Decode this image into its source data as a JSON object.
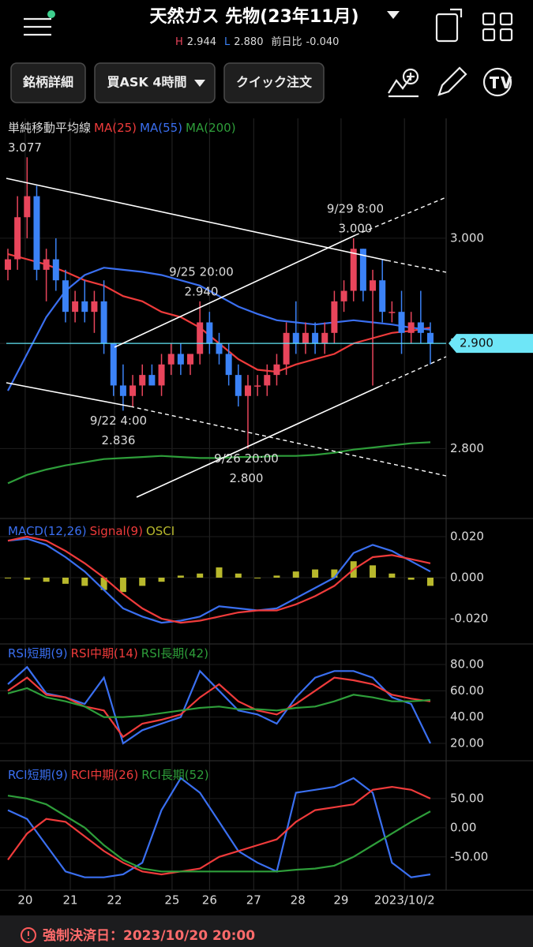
{
  "header": {
    "title": "天然ガス 先物(23年11月)",
    "high_label": "H",
    "high": "2.944",
    "low_label": "L",
    "low": "2.880",
    "change_label": "前日比",
    "change": "-0.040"
  },
  "toolbar": {
    "buttons": [
      "銘柄詳細",
      "買ASK 4時間",
      "クイック注文"
    ]
  },
  "price_chart": {
    "legend_title": "単純移動平均線",
    "ylim": [
      2.735,
      3.114
    ],
    "yticks": [
      {
        "value": 3.0,
        "label": "3.000"
      },
      {
        "value": 2.9,
        "label": "2.900"
      },
      {
        "value": 2.8,
        "label": "2.800"
      }
    ],
    "current_price": {
      "value": 2.9,
      "label": "2.900"
    },
    "high_label": 3.077,
    "annotations": [
      {
        "time": "9/29 8:00",
        "price": {
          "value": 3.0,
          "label": "3.000"
        }
      },
      {
        "time": "9/25 20:00",
        "price": {
          "value": 2.94,
          "label": "2.940"
        }
      },
      {
        "time": "9/22 4:00",
        "price": 2.836
      },
      {
        "time": "9/26 20:00",
        "price": {
          "value": 2.8,
          "label": "2.800"
        }
      }
    ],
    "up_color": "#e8455b",
    "down_color": "#3b82f6",
    "candles": [
      [
        2.97,
        2.99,
        2.96,
        2.98
      ],
      [
        2.98,
        3.04,
        2.97,
        3.02
      ],
      [
        3.02,
        3.077,
        3.0,
        3.04
      ],
      [
        3.04,
        3.05,
        2.96,
        2.97
      ],
      [
        2.97,
        2.99,
        2.94,
        2.98
      ],
      [
        2.98,
        3.0,
        2.95,
        2.96
      ],
      [
        2.96,
        2.97,
        2.92,
        2.93
      ],
      [
        2.93,
        2.95,
        2.92,
        2.94
      ],
      [
        2.94,
        2.96,
        2.92,
        2.93
      ],
      [
        2.93,
        2.95,
        2.91,
        2.94
      ],
      [
        2.94,
        2.96,
        2.89,
        2.9
      ],
      [
        2.9,
        2.9,
        2.85,
        2.86
      ],
      [
        2.86,
        2.88,
        2.836,
        2.85
      ],
      [
        2.85,
        2.87,
        2.84,
        2.86
      ],
      [
        2.86,
        2.88,
        2.85,
        2.87
      ],
      [
        2.87,
        2.88,
        2.86,
        2.86
      ],
      [
        2.86,
        2.89,
        2.85,
        2.88
      ],
      [
        2.88,
        2.9,
        2.87,
        2.89
      ],
      [
        2.89,
        2.9,
        2.87,
        2.88
      ],
      [
        2.88,
        2.89,
        2.87,
        2.89
      ],
      [
        2.89,
        2.94,
        2.88,
        2.92
      ],
      [
        2.92,
        2.93,
        2.89,
        2.9
      ],
      [
        2.9,
        2.91,
        2.88,
        2.89
      ],
      [
        2.89,
        2.9,
        2.86,
        2.87
      ],
      [
        2.87,
        2.88,
        2.84,
        2.85
      ],
      [
        2.85,
        2.87,
        2.8,
        2.86
      ],
      [
        2.86,
        2.87,
        2.85,
        2.86
      ],
      [
        2.86,
        2.88,
        2.85,
        2.87
      ],
      [
        2.87,
        2.89,
        2.86,
        2.88
      ],
      [
        2.88,
        2.92,
        2.87,
        2.91
      ],
      [
        2.91,
        2.94,
        2.89,
        2.9
      ],
      [
        2.9,
        2.92,
        2.89,
        2.91
      ],
      [
        2.91,
        2.92,
        2.89,
        2.9
      ],
      [
        2.9,
        2.92,
        2.89,
        2.91
      ],
      [
        2.91,
        2.95,
        2.9,
        2.94
      ],
      [
        2.94,
        2.96,
        2.93,
        2.95
      ],
      [
        2.95,
        3.0,
        2.94,
        2.99
      ],
      [
        2.99,
        2.99,
        2.94,
        2.95
      ],
      [
        2.95,
        2.97,
        2.86,
        2.96
      ],
      [
        2.96,
        2.98,
        2.92,
        2.93
      ],
      [
        2.93,
        2.94,
        2.92,
        2.93
      ],
      [
        2.93,
        2.95,
        2.89,
        2.91
      ],
      [
        2.91,
        2.93,
        2.9,
        2.92
      ],
      [
        2.92,
        2.95,
        2.9,
        2.91
      ],
      [
        2.91,
        2.92,
        2.88,
        2.9
      ]
    ],
    "series": [
      {
        "name": "MA(25)",
        "color": "#ef3b3b",
        "values": [
          2.985,
          2.98,
          2.975,
          2.968,
          2.96,
          2.955,
          2.945,
          2.94,
          2.93,
          2.925,
          2.915,
          2.9,
          2.885,
          2.875,
          2.873,
          2.88,
          2.885,
          2.89,
          2.9,
          2.905,
          2.91,
          2.912,
          2.915
        ]
      },
      {
        "name": "MA(55)",
        "color": "#3a6ff0",
        "values": [
          2.855,
          2.89,
          2.925,
          2.95,
          2.965,
          2.972,
          2.97,
          2.968,
          2.965,
          2.96,
          2.955,
          2.945,
          2.935,
          2.928,
          2.922,
          2.92,
          2.918,
          2.92,
          2.922,
          2.92,
          2.918,
          2.915,
          2.913
        ]
      },
      {
        "name": "MA(200)",
        "color": "#2e9e3a",
        "values": [
          2.767,
          2.775,
          2.78,
          2.784,
          2.787,
          2.79,
          2.791,
          2.792,
          2.793,
          2.792,
          2.791,
          2.791,
          2.792,
          2.792,
          2.793,
          2.793,
          2.794,
          2.796,
          2.799,
          2.801,
          2.803,
          2.805,
          2.806
        ]
      }
    ]
  },
  "macd": {
    "ylim": [
      -0.0308,
      0.0277
    ],
    "yticks": [
      {
        "value": 0.02,
        "label": "0.020"
      },
      {
        "value": 0,
        "label": "0.000"
      },
      {
        "value": -0.02,
        "label": "-0.020"
      }
    ],
    "series": [
      {
        "name": "MACD(12,26)",
        "color": "#3a6ff0",
        "values": [
          0.018,
          0.019,
          0.016,
          0.01,
          0.003,
          -0.006,
          -0.015,
          -0.019,
          -0.022,
          -0.021,
          -0.019,
          -0.014,
          -0.015,
          -0.016,
          -0.015,
          -0.01,
          -0.005,
          0.0,
          0.012,
          0.016,
          0.013,
          0.008,
          0.003
        ]
      },
      {
        "name": "Signal(9)",
        "color": "#ef3b3b",
        "values": [
          0.018,
          0.02,
          0.018,
          0.013,
          0.007,
          0.0,
          -0.008,
          -0.015,
          -0.02,
          -0.022,
          -0.021,
          -0.019,
          -0.017,
          -0.016,
          -0.016,
          -0.013,
          -0.009,
          -0.004,
          0.004,
          0.01,
          0.011,
          0.009,
          0.007
        ]
      }
    ],
    "osci": {
      "name": "OSCI",
      "color": "#b8b82c",
      "values": [
        0.0,
        -0.001,
        -0.002,
        -0.003,
        -0.004,
        -0.006,
        -0.007,
        -0.004,
        -0.002,
        0.001,
        0.002,
        0.005,
        0.002,
        0.0,
        0.001,
        0.003,
        0.004,
        0.004,
        0.008,
        0.006,
        0.002,
        -0.001,
        -0.004
      ]
    }
  },
  "rsi": {
    "ylim": [
      8,
      88.4
    ],
    "yticks": [
      {
        "value": 80,
        "label": "80.00"
      },
      {
        "value": 60,
        "label": "60.00"
      },
      {
        "value": 40,
        "label": "40.00"
      },
      {
        "value": 20,
        "label": "20.00"
      }
    ],
    "series": [
      {
        "name": "RSI短期(9)",
        "color": "#3a6ff0",
        "values": [
          65,
          78,
          58,
          55,
          50,
          70,
          20,
          30,
          35,
          40,
          75,
          60,
          45,
          42,
          35,
          55,
          70,
          75,
          75,
          70,
          55,
          50,
          20
        ]
      },
      {
        "name": "RSI中期(14)",
        "color": "#ef3b3b",
        "values": [
          60,
          70,
          57,
          55,
          48,
          45,
          25,
          35,
          38,
          42,
          55,
          65,
          52,
          45,
          42,
          50,
          60,
          70,
          68,
          65,
          57,
          54,
          52
        ]
      },
      {
        "name": "RSI長期(42)",
        "color": "#2e9e3a",
        "values": [
          58,
          62,
          55,
          52,
          48,
          40,
          40,
          41,
          43,
          45,
          47,
          48,
          46,
          46,
          45,
          47,
          48,
          52,
          57,
          55,
          52,
          52,
          53
        ]
      }
    ]
  },
  "rci": {
    "ylim": [
      -103,
      112
    ],
    "yticks": [
      {
        "value": 50,
        "label": "50.00"
      },
      {
        "value": 0,
        "label": "0.00"
      },
      {
        "value": -50,
        "label": "-50.00"
      }
    ],
    "series": [
      {
        "name": "RCI短期(9)",
        "color": "#3a6ff0",
        "values": [
          30,
          15,
          -30,
          -75,
          -85,
          -85,
          -80,
          -60,
          30,
          85,
          60,
          10,
          -40,
          -60,
          -75,
          60,
          65,
          70,
          85,
          60,
          -60,
          -85,
          -80
        ]
      },
      {
        "name": "RCI中期(26)",
        "color": "#ef3b3b",
        "values": [
          -55,
          -10,
          15,
          10,
          -15,
          -40,
          -60,
          -75,
          -80,
          -75,
          -70,
          -50,
          -40,
          -30,
          -20,
          10,
          30,
          35,
          40,
          65,
          70,
          65,
          50
        ]
      },
      {
        "name": "RCI長期(52)",
        "color": "#2e9e3a",
        "values": [
          55,
          50,
          40,
          20,
          0,
          -30,
          -55,
          -70,
          -75,
          -75,
          -75,
          -75,
          -75,
          -75,
          -75,
          -72,
          -70,
          -65,
          -50,
          -30,
          -10,
          10,
          28
        ]
      }
    ]
  },
  "x_axis": {
    "ticks": [
      {
        "value": 1.8,
        "label": "20"
      },
      {
        "value": 6.5,
        "label": "21"
      },
      {
        "value": 11.1,
        "label": "22"
      },
      {
        "value": 17.1,
        "label": "25"
      },
      {
        "value": 21,
        "label": "26"
      },
      {
        "value": 25.6,
        "label": "27"
      },
      {
        "value": 30.2,
        "label": "28"
      },
      {
        "value": 34.7,
        "label": "29"
      },
      {
        "value": 41.3,
        "label": "2023/10/2"
      }
    ]
  },
  "footer": {
    "text": "強制決済日：2023/10/20 20:00"
  }
}
